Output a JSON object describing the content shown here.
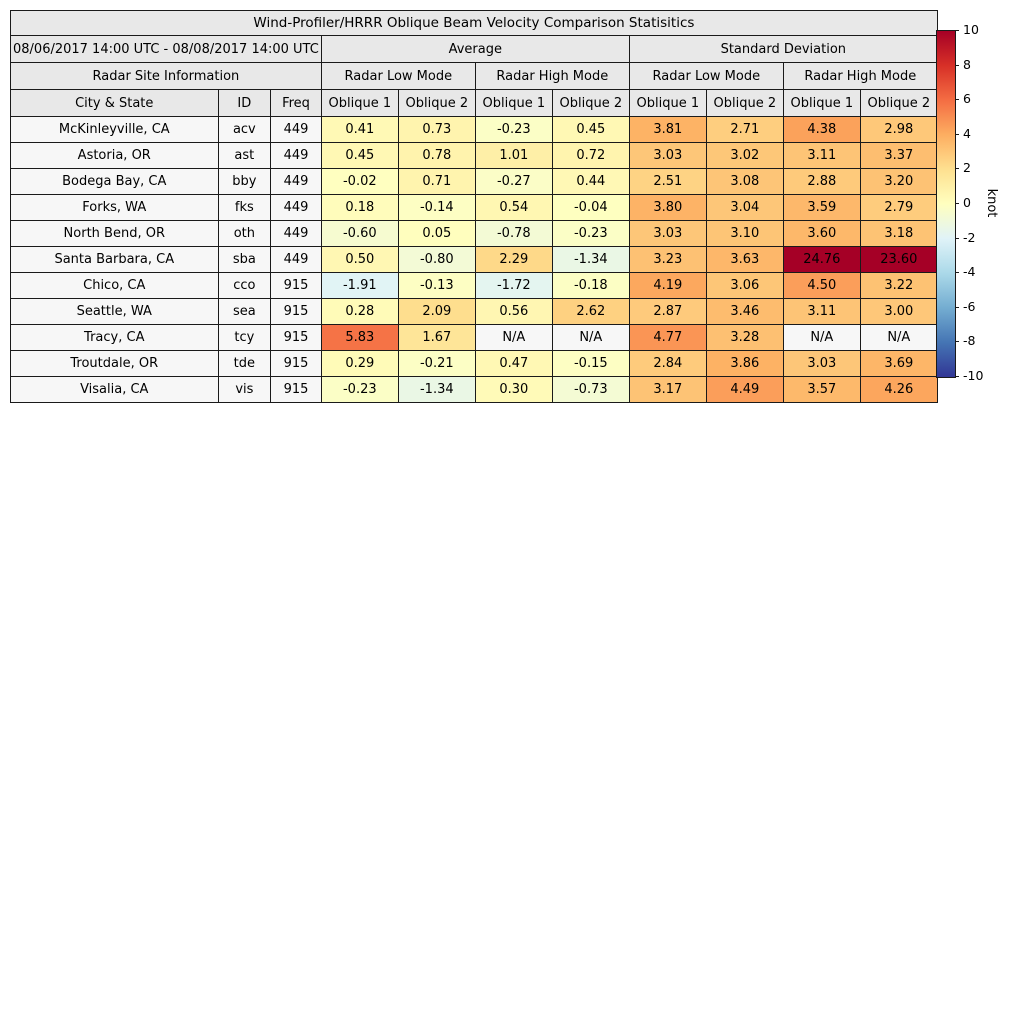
{
  "colors": {
    "na_cell": "#f7f7f7",
    "site_cell": "#f7f7f7",
    "header_bg": "#e8e8e8",
    "border": "#1a1a1a"
  },
  "colorbar": {
    "label": "knot",
    "min": -10,
    "max": 10,
    "ticks": [
      10,
      8,
      6,
      4,
      2,
      0,
      -2,
      -4,
      -6,
      -8,
      -10
    ],
    "stops": [
      {
        "v": -10,
        "c": "#313695"
      },
      {
        "v": -8,
        "c": "#4575b4"
      },
      {
        "v": -6,
        "c": "#74add1"
      },
      {
        "v": -4,
        "c": "#abd9e9"
      },
      {
        "v": -2,
        "c": "#e0f3f8"
      },
      {
        "v": 0,
        "c": "#ffffbf"
      },
      {
        "v": 2,
        "c": "#fee090"
      },
      {
        "v": 4,
        "c": "#fdae61"
      },
      {
        "v": 6,
        "c": "#f46d43"
      },
      {
        "v": 8,
        "c": "#d73027"
      },
      {
        "v": 10,
        "c": "#a50026"
      }
    ]
  },
  "chart_data": {
    "type": "heatmap",
    "title": "Wind-Profiler/HRRR Oblique Beam Velocity Comparison Statisitics",
    "date_range": "08/06/2017 14:00 UTC - 08/08/2017 14:00 UTC",
    "value_unit": "knot",
    "value_range": [
      -10,
      10
    ],
    "group_labels": {
      "average": "Average",
      "std_dev": "Standard Deviation",
      "site_info": "Radar Site Information",
      "low_mode": "Radar Low Mode",
      "high_mode": "Radar High Mode"
    },
    "col_labels": {
      "city": "City & State",
      "id": "ID",
      "freq": "Freq",
      "oblique1": "Oblique 1",
      "oblique2": "Oblique 2"
    },
    "rows": [
      {
        "city": "McKinleyville, CA",
        "id": "acv",
        "freq": "449",
        "values": [
          "0.41",
          "0.73",
          "-0.23",
          "0.45",
          "3.81",
          "2.71",
          "4.38",
          "2.98"
        ]
      },
      {
        "city": "Astoria, OR",
        "id": "ast",
        "freq": "449",
        "values": [
          "0.45",
          "0.78",
          "1.01",
          "0.72",
          "3.03",
          "3.02",
          "3.11",
          "3.37"
        ]
      },
      {
        "city": "Bodega Bay, CA",
        "id": "bby",
        "freq": "449",
        "values": [
          "-0.02",
          "0.71",
          "-0.27",
          "0.44",
          "2.51",
          "3.08",
          "2.88",
          "3.20"
        ]
      },
      {
        "city": "Forks, WA",
        "id": "fks",
        "freq": "449",
        "values": [
          "0.18",
          "-0.14",
          "0.54",
          "-0.04",
          "3.80",
          "3.04",
          "3.59",
          "2.79"
        ]
      },
      {
        "city": "North Bend, OR",
        "id": "oth",
        "freq": "449",
        "values": [
          "-0.60",
          "0.05",
          "-0.78",
          "-0.23",
          "3.03",
          "3.10",
          "3.60",
          "3.18"
        ]
      },
      {
        "city": "Santa Barbara, CA",
        "id": "sba",
        "freq": "449",
        "values": [
          "0.50",
          "-0.80",
          "2.29",
          "-1.34",
          "3.23",
          "3.63",
          "24.76",
          "23.60"
        ]
      },
      {
        "city": "Chico, CA",
        "id": "cco",
        "freq": "915",
        "values": [
          "-1.91",
          "-0.13",
          "-1.72",
          "-0.18",
          "4.19",
          "3.06",
          "4.50",
          "3.22"
        ]
      },
      {
        "city": "Seattle, WA",
        "id": "sea",
        "freq": "915",
        "values": [
          "0.28",
          "2.09",
          "0.56",
          "2.62",
          "2.87",
          "3.46",
          "3.11",
          "3.00"
        ]
      },
      {
        "city": "Tracy, CA",
        "id": "tcy",
        "freq": "915",
        "values": [
          "5.83",
          "1.67",
          "N/A",
          "N/A",
          "4.77",
          "3.28",
          "N/A",
          "N/A"
        ]
      },
      {
        "city": "Troutdale, OR",
        "id": "tde",
        "freq": "915",
        "values": [
          "0.29",
          "-0.21",
          "0.47",
          "-0.15",
          "2.84",
          "3.86",
          "3.03",
          "3.69"
        ]
      },
      {
        "city": "Visalia, CA",
        "id": "vis",
        "freq": "915",
        "values": [
          "-0.23",
          "-1.34",
          "0.30",
          "-0.73",
          "3.17",
          "4.49",
          "3.57",
          "4.26"
        ]
      }
    ]
  }
}
